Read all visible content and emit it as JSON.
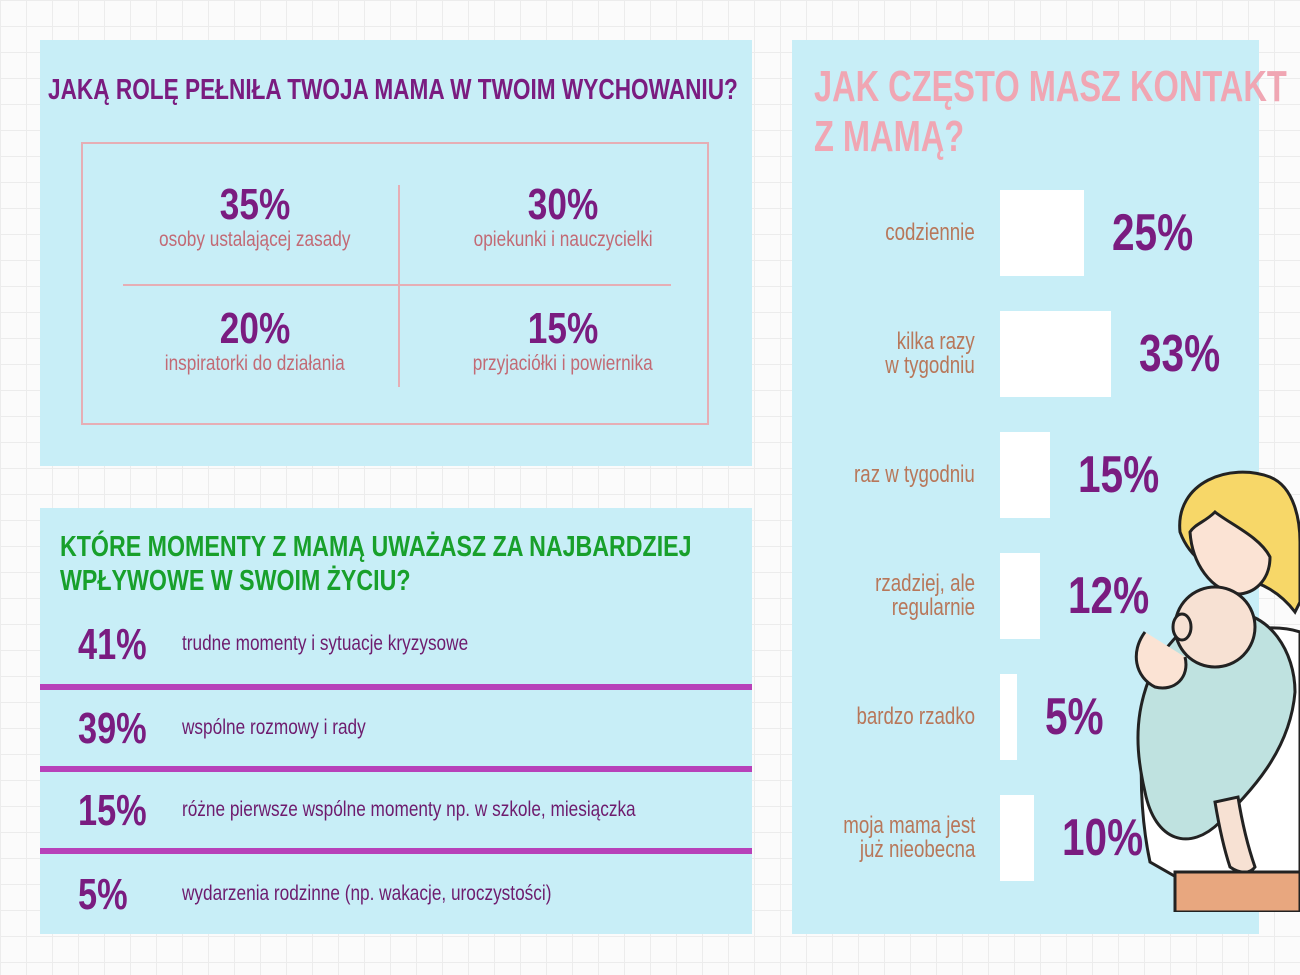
{
  "roles": {
    "title": "JAKĄ ROLĘ PEŁNIŁA TWOJA MAMA W TWOIM WYCHOWANIU?",
    "items": [
      {
        "pct": "35%",
        "label": "osoby ustalającej zasady"
      },
      {
        "pct": "30%",
        "label": "opiekunki i nauczycielki"
      },
      {
        "pct": "20%",
        "label": "inspiratorki do działania"
      },
      {
        "pct": "15%",
        "label": "przyjaciółki i powiernika"
      }
    ]
  },
  "moments": {
    "title_line1": "KTÓRE MOMENTY Z MAMĄ UWAŻASZ ZA NAJBARDZIEJ",
    "title_line2": "WPŁYWOWE W SWOIM ŻYCIU?",
    "items": [
      {
        "pct": "41%",
        "label": "trudne momenty i sytuacje kryzysowe"
      },
      {
        "pct": "39%",
        "label": "wspólne rozmowy i rady"
      },
      {
        "pct": "15%",
        "label": "różne pierwsze wspólne momenty np. w szkole, miesiączka"
      },
      {
        "pct": "5%",
        "label": "wydarzenia rodzinne (np. wakacje, uroczystości)"
      }
    ]
  },
  "contact": {
    "title_line1": "JAK CZĘSTO MASZ KONTAKT",
    "title_line2": "Z MAMĄ?"
  },
  "chart_data": {
    "type": "bar",
    "orientation": "horizontal",
    "title": "JAK CZĘSTO MASZ KONTAKT Z MAMĄ?",
    "categories": [
      [
        "codziennie"
      ],
      [
        "kilka razy",
        "w tygodniu"
      ],
      [
        "raz w tygodniu"
      ],
      [
        "rzadziej, ale",
        "regularnie"
      ],
      [
        "bardzo rzadko"
      ],
      [
        "moja mama jest",
        "już nieobecna"
      ]
    ],
    "values": [
      25,
      33,
      15,
      12,
      5,
      10
    ],
    "value_labels": [
      "25%",
      "33%",
      "15%",
      "12%",
      "5%",
      "10%"
    ],
    "unit": "%",
    "grid": false,
    "legend": "none",
    "colors": {
      "bar": "#ffffff",
      "label": "#b8775a",
      "value": "#7a1c80",
      "background": "#c8eef7"
    }
  },
  "illustration": {
    "icon": "mother-holding-baby-illustration"
  }
}
